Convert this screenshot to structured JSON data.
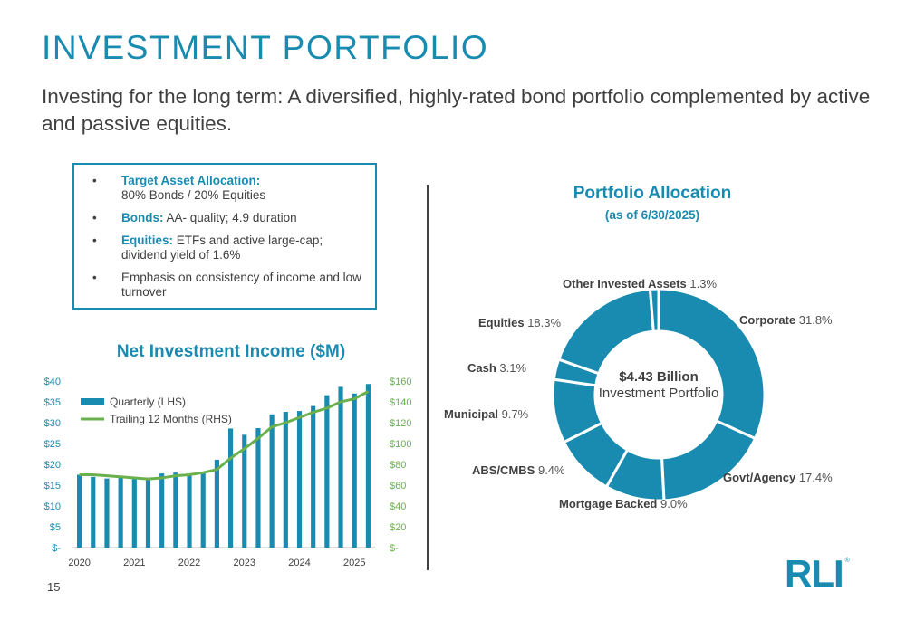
{
  "header": {
    "title": "INVESTMENT PORTFOLIO",
    "subtitle": "Investing for the long term: A diversified, highly-rated bond portfolio complemented by active and passive equities."
  },
  "callout": {
    "items": [
      {
        "label": "Target Asset Allocation:",
        "text": "80% Bonds / 20% Equities"
      },
      {
        "label": "Bonds:",
        "text": "AA- quality; 4.9 duration"
      },
      {
        "label": "Equities:",
        "text": "ETFs and active large-cap; dividend yield of 1.6%"
      },
      {
        "label": "",
        "text": "Emphasis on consistency of income and low turnover"
      }
    ]
  },
  "chart_data": [
    {
      "type": "bar",
      "title": "Net Investment Income ($M)",
      "x": [
        "2020 Q1",
        "2020 Q2",
        "2020 Q3",
        "2020 Q4",
        "2021 Q1",
        "2021 Q2",
        "2021 Q3",
        "2021 Q4",
        "2022 Q1",
        "2022 Q2",
        "2022 Q3",
        "2022 Q4",
        "2023 Q1",
        "2023 Q2",
        "2023 Q3",
        "2023 Q4",
        "2024 Q1",
        "2024 Q2",
        "2024 Q3",
        "2024 Q4",
        "2025 Q1",
        "2025 Q2"
      ],
      "x_tick_labels": [
        "2020",
        "2021",
        "2022",
        "2023",
        "2024",
        "2025"
      ],
      "series": [
        {
          "name": "Quarterly (LHS)",
          "axis": "left",
          "type": "bar",
          "color": "#1a8bb0",
          "values": [
            17.5,
            17.0,
            16.6,
            17.0,
            16.5,
            16.8,
            17.8,
            18.0,
            17.6,
            18.1,
            21.1,
            28.6,
            27.1,
            28.7,
            32.0,
            32.6,
            32.8,
            34.0,
            36.6,
            38.6,
            37.0,
            39.3
          ]
        },
        {
          "name": "Trailing 12 Months (RHS)",
          "axis": "right",
          "type": "line",
          "color": "#6ab04c",
          "values": [
            70,
            70,
            69,
            68,
            67,
            66,
            67,
            69,
            70,
            72,
            75,
            86,
            95,
            105,
            116,
            120,
            125,
            130,
            134,
            140,
            143,
            150
          ]
        }
      ],
      "y_left": {
        "range": [
          0,
          40
        ],
        "ticks": [
          "$-",
          "$5",
          "$10",
          "$15",
          "$20",
          "$25",
          "$30",
          "$35",
          "$40"
        ]
      },
      "y_right": {
        "range": [
          0,
          160
        ],
        "ticks": [
          "$-",
          "$20",
          "$40",
          "$60",
          "$80",
          "$100",
          "$120",
          "$140",
          "$160"
        ]
      },
      "legend_position": "top-left",
      "colors": {
        "left_axis": "#1a8bb0",
        "right_axis": "#6ab04c"
      }
    },
    {
      "type": "pie",
      "title": "Portfolio Allocation",
      "subtitle": "(as of 6/30/2025)",
      "center_value": "$4.43 Billion",
      "center_label": "Investment Portfolio",
      "color": "#1a8bb0",
      "slices": [
        {
          "name": "Corporate",
          "value": 31.8,
          "label": "31.8%"
        },
        {
          "name": "Govt/Agency",
          "value": 17.4,
          "label": "17.4%"
        },
        {
          "name": "Mortgage Backed",
          "value": 9.0,
          "label": "9.0%"
        },
        {
          "name": "ABS/CMBS",
          "value": 9.4,
          "label": "9.4%"
        },
        {
          "name": "Municipal",
          "value": 9.7,
          "label": "9.7%"
        },
        {
          "name": "Cash",
          "value": 3.1,
          "label": "3.1%"
        },
        {
          "name": "Equities",
          "value": 18.3,
          "label": "18.3%"
        },
        {
          "name": "Other Invested Assets",
          "value": 1.3,
          "label": "1.3%"
        }
      ]
    }
  ],
  "footer": {
    "page_number": "15",
    "logo_text": "RLI",
    "logo_mark": "®"
  }
}
